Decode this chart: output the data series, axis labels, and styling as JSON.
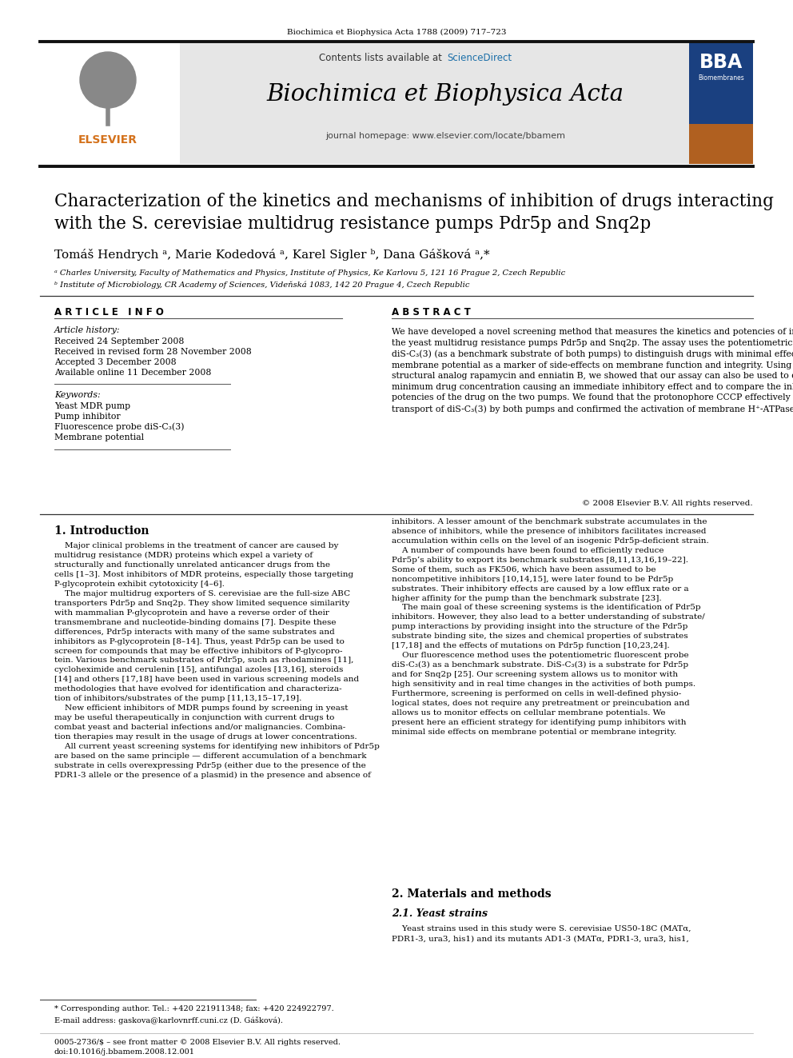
{
  "bg_color": "#ffffff",
  "top_journal_line": "Biochimica et Biophysica Acta 1788 (2009) 717–723",
  "header_bg": "#e8e8e8",
  "contents_text": "Contents lists available at ",
  "sciencedirect_text": "ScienceDirect",
  "sciencedirect_color": "#1a6ea8",
  "journal_name": "Biochimica et Biophysica Acta",
  "homepage_text": "journal homepage: www.elsevier.com/locate/bbamem",
  "elsevier_color": "#d4721c",
  "article_title_line1": "Characterization of the kinetics and mechanisms of inhibition of drugs interacting",
  "article_title_line2": "with the S. cerevisiae multidrug resistance pumps Pdr5p and Snq2p",
  "authors": "Tomáš Hendrych ᵃ, Marie Kodedová ᵃ, Karel Sigler ᵇ, Dana Gášková ᵃ,*",
  "affil_a": "ᵃ Charles University, Faculty of Mathematics and Physics, Institute of Physics, Ke Karlovu 5, 121 16 Prague 2, Czech Republic",
  "affil_b": "ᵇ Institute of Microbiology, CR Academy of Sciences, Videňská 1083, 142 20 Prague 4, Czech Republic",
  "article_info_title": "A R T I C L E   I N F O",
  "article_history_title": "Article history:",
  "received": "Received 24 September 2008",
  "revised": "Received in revised form 28 November 2008",
  "accepted": "Accepted 3 December 2008",
  "available": "Available online 11 December 2008",
  "keywords_title": "Keywords:",
  "keyword1": "Yeast MDR pump",
  "keyword2": "Pump inhibitor",
  "keyword3": "Fluorescence probe diS-C₃(3)",
  "keyword4": "Membrane potential",
  "abstract_title": "A B S T R A C T",
  "abstract_text": "We have developed a novel screening method that measures the kinetics and potencies of inhibitors of\nthe yeast multidrug resistance pumps Pdr5p and Snq2p. The assay uses the potentiometric fluorescent probe\ndiS-C₃(3) (as a benchmark substrate of both pumps) to distinguish drugs with minimal effects on plasma\nmembrane potential as a marker of side-effects on membrane function and integrity. Using FK506, its\nstructural analog rapamycin and enniatin B, we showed that our assay can also be used to determine the\nminimum drug concentration causing an immediate inhibitory effect and to compare the inhibitory\npotencies of the drug on the two pumps. We found that the protonophore CCCP effectively inhibits the\ntransport of diS-C₃(3) by both pumps and confirmed the activation of membrane H⁺-ATPase by CCCP.",
  "copyright": "© 2008 Elsevier B.V. All rights reserved.",
  "intro_title": "1. Introduction",
  "intro_left_p1": "    Major clinical problems in the treatment of cancer are caused by\nmultidrug resistance (MDR) proteins which expel a variety of\nstructurally and functionally unrelated anticancer drugs from the\ncells [1–3]. Most inhibitors of MDR proteins, especially those targeting\nP-glycoprotein exhibit cytotoxicity [4–6].",
  "intro_left_p2": "    The major multidrug exporters of S. cerevisiae are the full-size ABC\ntransporters Pdr5p and Snq2p. They show limited sequence similarity\nwith mammalian P-glycoprotein and have a reverse order of their\ntransmembrane and nucleotide-binding domains [7]. Despite these\ndifferences, Pdr5p interacts with many of the same substrates and\ninhibitors as P-glycoprotein [8–14]. Thus, yeast Pdr5p can be used to\nscreen for compounds that may be effective inhibitors of P-glycopro-\ntein. Various benchmark substrates of Pdr5p, such as rhodamines [11],\ncycloheximide and cerulenin [15], antifungal azoles [13,16], steroids\n[14] and others [17,18] have been used in various screening models and\nmethodologies that have evolved for identification and characteriza-\ntion of inhibitors/substrates of the pump [11,13,15–17,19].",
  "intro_left_p3": "    New efficient inhibitors of MDR pumps found by screening in yeast\nmay be useful therapeutically in conjunction with current drugs to\ncombat yeast and bacterial infections and/or malignancies. Combina-\ntion therapies may result in the usage of drugs at lower concentrations.",
  "intro_left_p4": "    All current yeast screening systems for identifying new inhibitors of Pdr5p\nare based on the same principle — different accumulation of a benchmark\nsubstrate in cells overexpressing Pdr5p (either due to the presence of the\nPDR1-3 allele or the presence of a plasmid) in the presence and absence of",
  "intro_right_p1": "inhibitors. A lesser amount of the benchmark substrate accumulates in the\nabsence of inhibitors, while the presence of inhibitors facilitates increased\naccumulation within cells on the level of an isogenic Pdr5p-deficient strain.",
  "intro_right_p2": "    A number of compounds have been found to efficiently reduce\nPdr5p’s ability to export its benchmark substrates [8,11,13,16,19–22].\nSome of them, such as FK506, which have been assumed to be\nnoncompetitive inhibitors [10,14,15], were later found to be Pdr5p\nsubstrates. Their inhibitory effects are caused by a low efflux rate or a\nhigher affinity for the pump than the benchmark substrate [23].",
  "intro_right_p3": "    The main goal of these screening systems is the identification of Pdr5p\ninhibitors. However, they also lead to a better understanding of substrate/\npump interactions by providing insight into the structure of the Pdr5p\nsubstrate binding site, the sizes and chemical properties of substrates\n[17,18] and the effects of mutations on Pdr5p function [10,23,24].",
  "intro_right_p4": "    Our fluorescence method uses the potentiometric fluorescent probe\ndiS-C₃(3) as a benchmark substrate. DiS-C₃(3) is a substrate for Pdr5p\nand for Snq2p [25]. Our screening system allows us to monitor with\nhigh sensitivity and in real time changes in the activities of both pumps.\nFurthermore, screening is performed on cells in well-defined physio-\nlogical states, does not require any pretreatment or preincubation and\nallows us to monitor effects on cellular membrane potentials. We\npresent here an efficient strategy for identifying pump inhibitors with\nminimal side effects on membrane potential or membrane integrity.",
  "section2_title": "2. Materials and methods",
  "section21_title": "2.1. Yeast strains",
  "section21_text": "    Yeast strains used in this study were S. cerevisiae US50-18C (MATα,\nPDR1-3, ura3, his1) and its mutants AD1-3 (MATα, PDR1-3, ura3, his1,",
  "footnote_star": "* Corresponding author. Tel.: +420 221911348; fax: +420 224922797.",
  "footnote_email": "E-mail address: gaskova@karlovnrff.cuni.cz (D. Gášková).",
  "footer_line1": "0005-2736/$ – see front matter © 2008 Elsevier B.V. All rights reserved.",
  "footer_line2": "doi:10.1016/j.bbamem.2008.12.001"
}
